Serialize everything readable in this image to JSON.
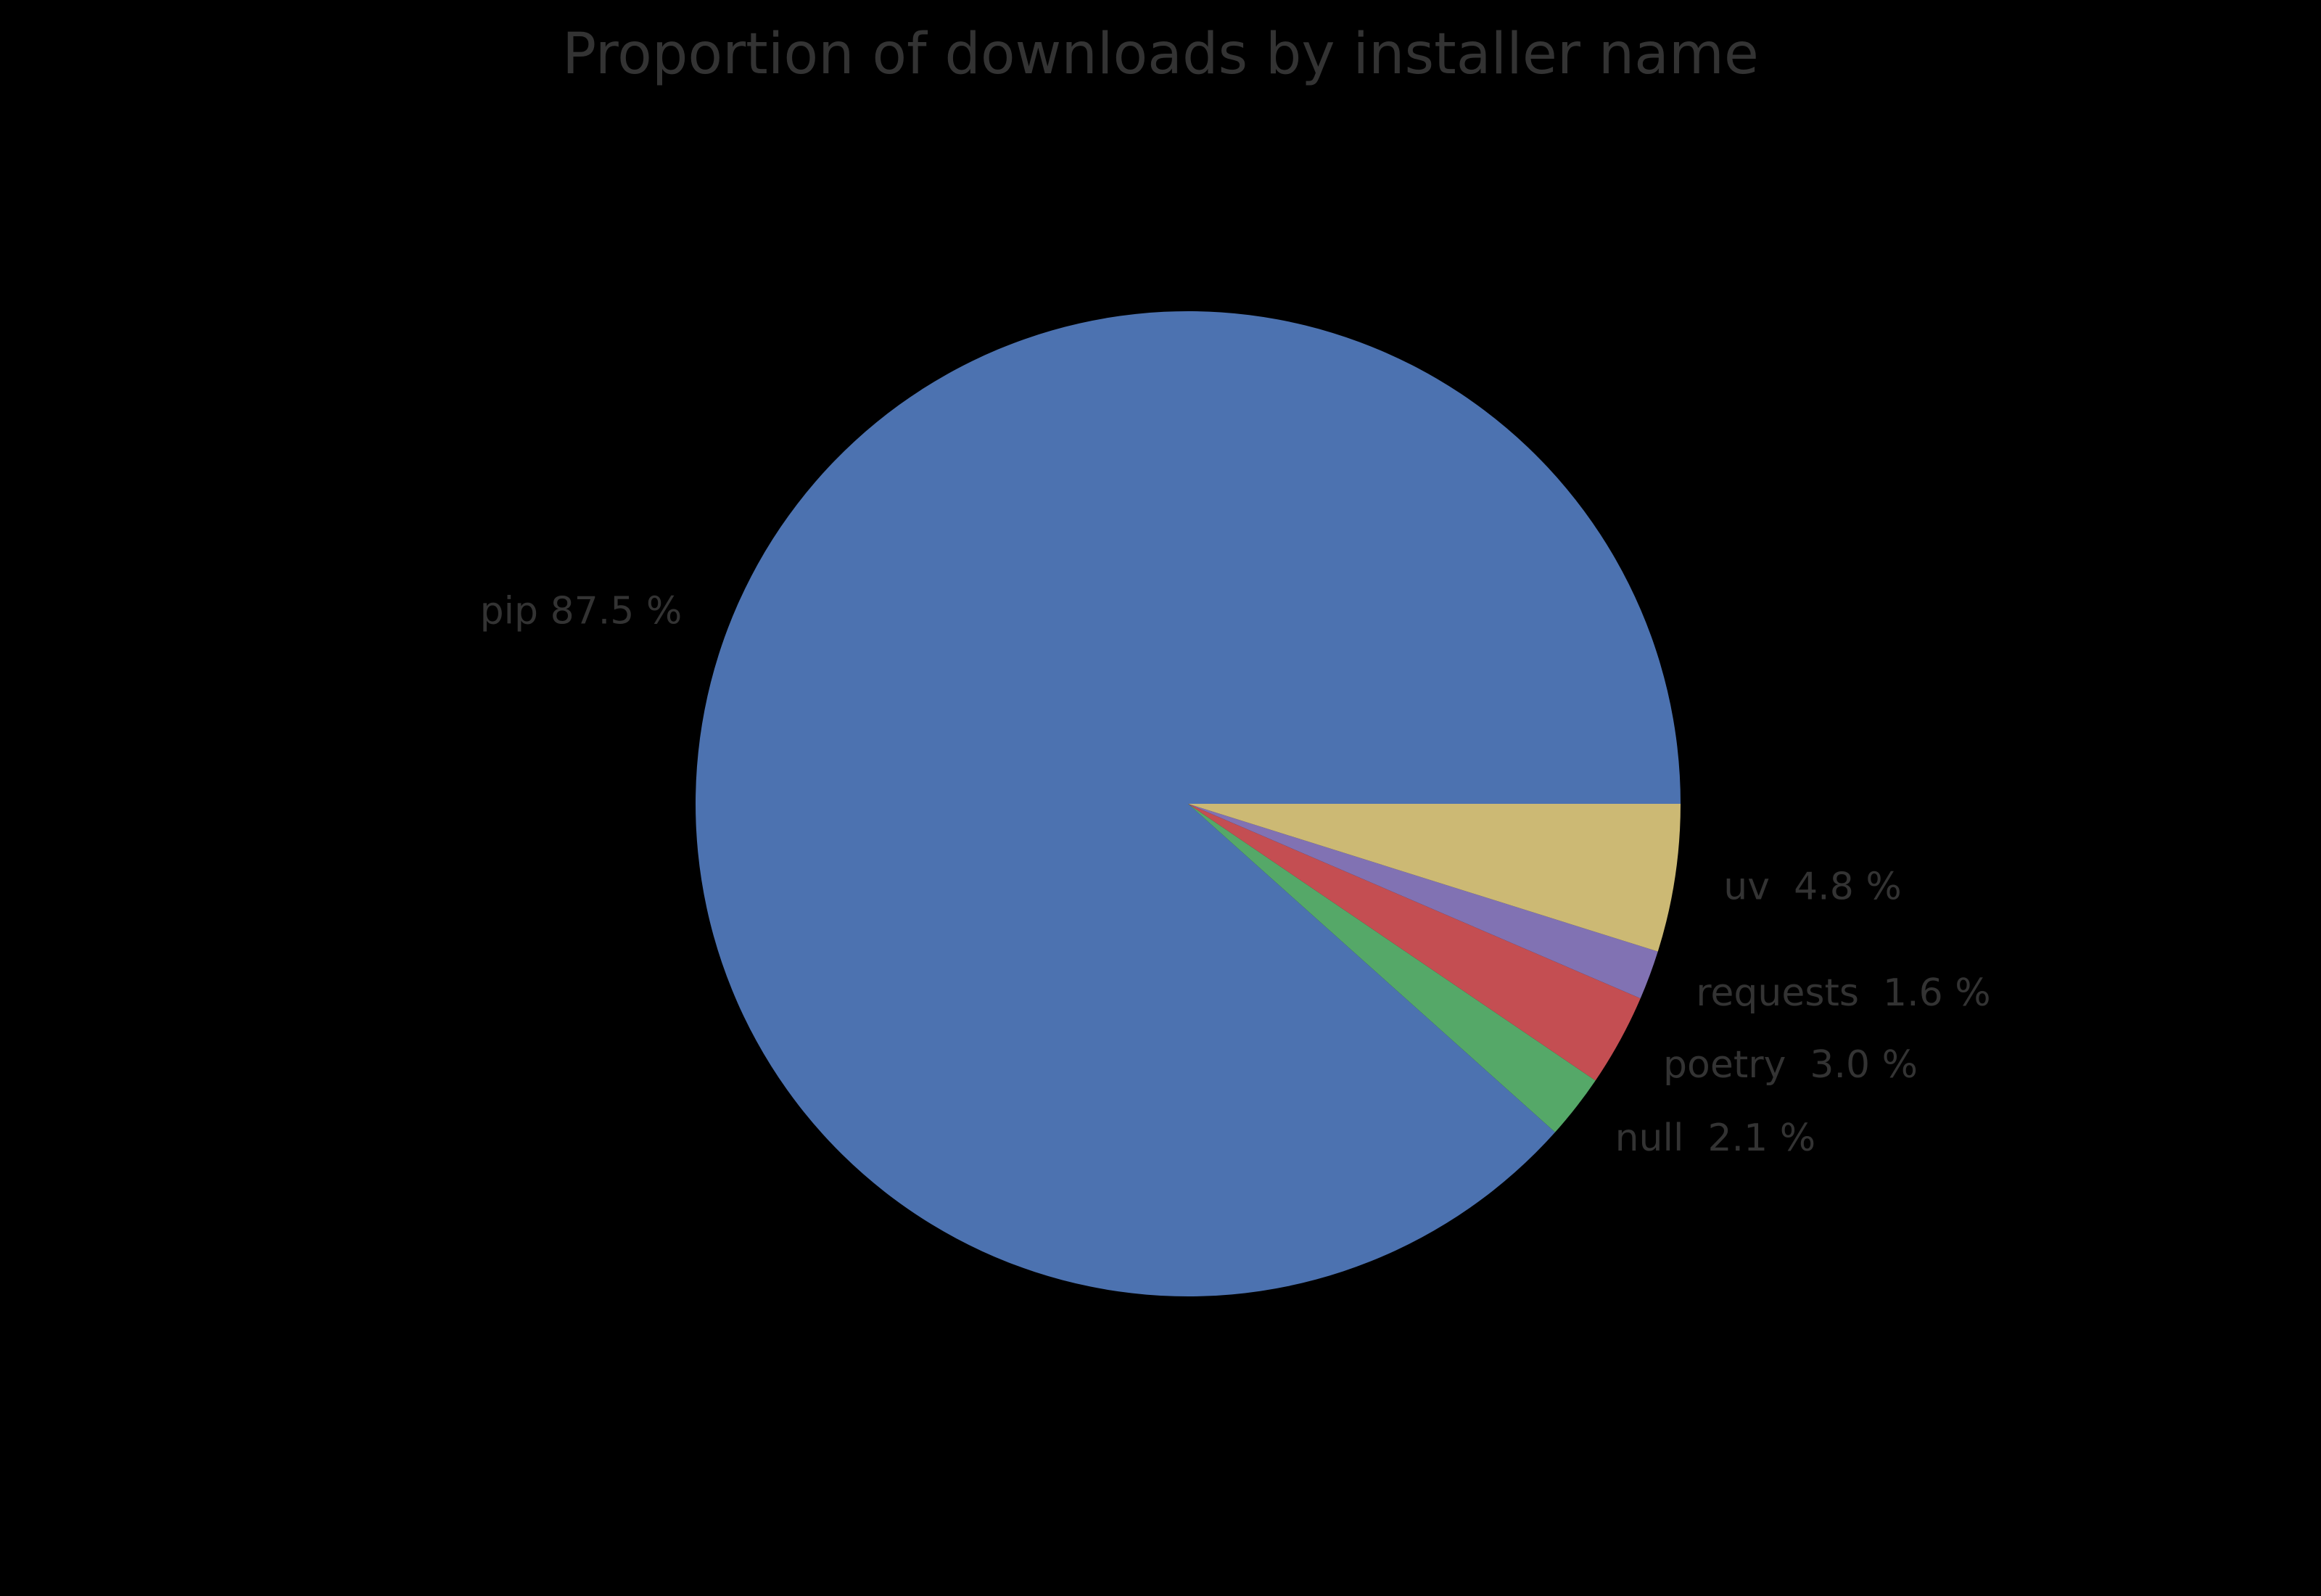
{
  "chart_data": {
    "type": "pie",
    "title": "Proportion of downloads by installer name",
    "unit": "%",
    "start_angle_deg": 0,
    "direction": "counterclockwise",
    "legend": "none",
    "background_color": "#000000",
    "text_color": "#333333",
    "center": [
      1638,
      1108
    ],
    "radius": 679,
    "label_distance": 1.1,
    "title_font_size": 78,
    "label_font_size": 52,
    "series": [
      {
        "label": "pip",
        "value": 87.5,
        "display": "pip 87.5 %",
        "color": "#4c72b0"
      },
      {
        "label": "null",
        "value": 2.1,
        "display": "null  2.1 %",
        "color": "#55a868"
      },
      {
        "label": "poetry",
        "value": 3.0,
        "display": "poetry  3.0 %",
        "color": "#c44e52"
      },
      {
        "label": "requests",
        "value": 1.6,
        "display": "requests  1.6 %",
        "color": "#8172b3"
      },
      {
        "label": "uv",
        "value": 4.8,
        "display": "uv  4.8 %",
        "color": "#ccb974"
      }
    ]
  }
}
